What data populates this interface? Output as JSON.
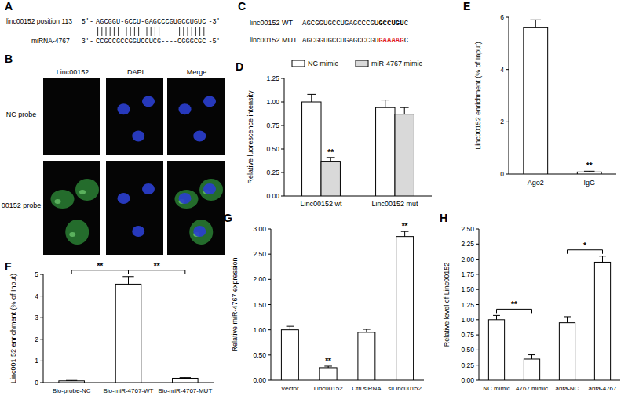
{
  "alignment": {
    "panel_label": "A",
    "top_label": "linc00152 position 113",
    "bottom_label": "miRNA-4767",
    "top": {
      "prefix": "5'-",
      "sequence": "AGCGGU-GCCU-GAGCCCGUGCCUGUC",
      "suffix": "-3'"
    },
    "bottom": {
      "prefix": "3'-",
      "sequence": "CCGCCGCCGGUCCUCG----CGGGCGC",
      "suffix": "-5'"
    }
  },
  "microscopy": {
    "panel_label": "B",
    "columns": [
      "Linc00152",
      "DAPI",
      "Merge"
    ],
    "rows": [
      "NC probe",
      "00152 probe"
    ]
  },
  "sequences": {
    "panel_label": "C",
    "rows": [
      {
        "label": "linc00152 WT",
        "parts": [
          {
            "text": "AGCGGUGCCUGAGCCCGU"
          },
          {
            "text": "GCCUGU",
            "style": "bold"
          },
          {
            "text": "C"
          }
        ]
      },
      {
        "label": "linc00152 MUT",
        "parts": [
          {
            "text": "AGCGGUGCCUGAGCCCGU"
          },
          {
            "text": "GAAAAG",
            "style": "bold",
            "color": "#e0201b"
          },
          {
            "text": "C"
          }
        ]
      }
    ]
  },
  "chart_data": [
    {
      "type": "bar",
      "panel_label": "D",
      "y_label": "Relative luorescence intensity",
      "legend": "top",
      "categories": [
        "Linc00152 wt",
        "Linc00152 mut"
      ],
      "series": [
        {
          "name": "NC mimic",
          "color": "#ffffff",
          "values": [
            1.0,
            0.94
          ],
          "errors": [
            0.08,
            0.08
          ],
          "significance": [
            null,
            null
          ]
        },
        {
          "name": "miR-4767 mimic",
          "color": "#d9d9d9",
          "values": [
            0.37,
            0.87
          ],
          "errors": [
            0.04,
            0.07
          ],
          "significance": [
            "**",
            null
          ]
        }
      ],
      "ylim": [
        0,
        1.25
      ],
      "yticks": [
        {
          "value": 0,
          "label": "0.00"
        },
        {
          "value": 0.25,
          "label": "0.25"
        },
        {
          "value": 0.5,
          "label": "0.50"
        },
        {
          "value": 0.75,
          "label": "0.75"
        },
        {
          "value": 1,
          "label": "1.00"
        },
        {
          "value": 1.25,
          "label": "1.25"
        }
      ]
    },
    {
      "type": "bar",
      "panel_label": "E",
      "y_label": "Linc00152 enrichment (% of Input)",
      "color": "#ffffff",
      "categories": [
        "Ago2",
        "IgG"
      ],
      "values": [
        5.6,
        0.08
      ],
      "errors": [
        0.3,
        0.03
      ],
      "significance": [
        null,
        "**"
      ],
      "ylim": [
        0,
        6
      ],
      "yticks": [
        0,
        2,
        4,
        6
      ]
    },
    {
      "type": "bar",
      "panel_label": "F",
      "y_label": "Linc001 52 enrichment (% of Input)",
      "color": "#ffffff",
      "categories": [
        "Bio-probe-NC",
        "Bio-miR-4767-WT",
        "Bio-miR-4767-MUT"
      ],
      "values": [
        0.08,
        4.55,
        0.2
      ],
      "errors": [
        0.02,
        0.35,
        0.03
      ],
      "comparisons": [
        {
          "categories": [
            "Bio-probe-NC",
            "Bio-miR-4767-WT"
          ],
          "label": "**"
        },
        {
          "categories": [
            "Bio-miR-4767-WT",
            "Bio-miR-4767-MUT"
          ],
          "label": "**"
        }
      ],
      "ylim": [
        0,
        5
      ],
      "yticks": [
        0,
        1,
        2,
        3,
        4,
        5
      ]
    },
    {
      "type": "bar",
      "panel_label": "G",
      "y_label": "Relative miR-4767 expression",
      "color": "#ffffff",
      "categories": [
        "Vector",
        "Linc00152",
        "Ctrl siRNA",
        "siLinc00152"
      ],
      "values": [
        1.0,
        0.25,
        0.95,
        2.85
      ],
      "errors": [
        0.07,
        0.03,
        0.06,
        0.1
      ],
      "significance": [
        null,
        "**",
        null,
        "**"
      ],
      "ylim": [
        0,
        3
      ],
      "yticks": [
        {
          "value": 0,
          "label": "0.00"
        },
        {
          "value": 0.5,
          "label": "0.50"
        },
        {
          "value": 1,
          "label": "1.00"
        },
        {
          "value": 1.5,
          "label": "1.50"
        },
        {
          "value": 2,
          "label": "2.00"
        },
        {
          "value": 2.5,
          "label": "2.50"
        },
        {
          "value": 3,
          "label": "3.00"
        }
      ]
    },
    {
      "type": "bar",
      "panel_label": "H",
      "y_label": "Relative level of Linc00152",
      "color": "#ffffff",
      "categories": [
        "NC mimic",
        "4767 mimic",
        "anta-NC",
        "anta-4767"
      ],
      "values": [
        1.0,
        0.35,
        0.95,
        1.95
      ],
      "errors": [
        0.07,
        0.07,
        0.1,
        0.1
      ],
      "comparisons": [
        {
          "categories": [
            "NC mimic",
            "4767 mimic"
          ],
          "label": "**"
        },
        {
          "categories": [
            "anta-NC",
            "anta-4767"
          ],
          "label": "*"
        }
      ],
      "ylim": [
        0,
        2.5
      ],
      "yticks": [
        {
          "value": 0,
          "label": "0.00"
        },
        {
          "value": 0.25,
          "label": "0.25"
        },
        {
          "value": 0.5,
          "label": "0.50"
        },
        {
          "value": 0.75,
          "label": "0.75"
        },
        {
          "value": 1,
          "label": "1.00"
        },
        {
          "value": 1.25,
          "label": "1.25"
        },
        {
          "value": 1.5,
          "label": "1.50"
        },
        {
          "value": 1.75,
          "label": "1.75"
        },
        {
          "value": 2,
          "label": "2.00"
        },
        {
          "value": 2.25,
          "label": "2.25"
        },
        {
          "value": 2.5,
          "label": "2.50"
        }
      ]
    }
  ]
}
